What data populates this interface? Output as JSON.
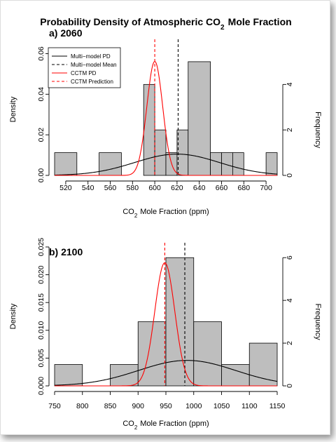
{
  "figure": {
    "title": "Probability Density of Atmospheric CO2 Mole Fraction",
    "colors": {
      "multi_model": "#000000",
      "cctm": "#ff0000",
      "bar_fill": "#bebebe"
    }
  },
  "chart_data": [
    {
      "type": "bar",
      "panel_label": "a) 2060",
      "title": "a) 2060",
      "xlabel": "CO2 Mole Fraction (ppm)",
      "ylabel": "Density",
      "y2label": "Frequency",
      "xlim": [
        510,
        710
      ],
      "ylim": [
        0,
        0.065
      ],
      "y2lim": [
        0,
        5.8
      ],
      "xticks": [
        520,
        540,
        560,
        580,
        600,
        620,
        640,
        660,
        680,
        700
      ],
      "yticks": [
        0.0,
        0.02,
        0.04,
        0.06
      ],
      "ytick_labels": [
        "0.00",
        "0.02",
        "0.04",
        "0.06"
      ],
      "y2ticks": [
        0,
        2,
        4
      ],
      "histogram": {
        "bins": [
          [
            510,
            530
          ],
          [
            530,
            550
          ],
          [
            550,
            570
          ],
          [
            570,
            590
          ],
          [
            590,
            600
          ],
          [
            600,
            610
          ],
          [
            610,
            620
          ],
          [
            620,
            630
          ],
          [
            630,
            650
          ],
          [
            650,
            660
          ],
          [
            660,
            670
          ],
          [
            670,
            680
          ],
          [
            680,
            690
          ],
          [
            690,
            700
          ],
          [
            700,
            710
          ]
        ],
        "frequencies": [
          1,
          0,
          1,
          0,
          4,
          2,
          1,
          2,
          5,
          1,
          1,
          1,
          0,
          0,
          1
        ]
      },
      "series": [
        {
          "name": "Multi-model PD",
          "kind": "normal",
          "mean": 620,
          "sd": 38,
          "linestyle": "solid",
          "color": "#000000"
        },
        {
          "name": "Multi-model Mean",
          "kind": "vline",
          "x": 621,
          "linestyle": "dashed",
          "color": "#000000"
        },
        {
          "name": "CCTM PD",
          "kind": "normal",
          "mean": 600,
          "sd": 7.1,
          "linestyle": "solid",
          "color": "#ff0000"
        },
        {
          "name": "CCTM Prediction",
          "kind": "vline",
          "x": 600,
          "linestyle": "dashed",
          "color": "#ff0000"
        }
      ],
      "legend": {
        "placement": "top-left",
        "entries": [
          "Multi−model PD",
          "Multi−model Mean",
          "CCTM PD",
          "CCTM Prediction"
        ]
      }
    },
    {
      "type": "bar",
      "panel_label": "b) 2100",
      "title": "b) 2100",
      "xlabel": "CO2 Mole Fraction (ppm)",
      "ylabel": "Density",
      "y2label": "Frequency",
      "xlim": [
        750,
        1150
      ],
      "ylim": [
        0,
        0.025
      ],
      "y2lim": [
        0,
        6.5
      ],
      "xticks": [
        750,
        800,
        850,
        900,
        950,
        1000,
        1050,
        1100,
        1150
      ],
      "yticks": [
        0.0,
        0.005,
        0.01,
        0.015,
        0.02,
        0.025
      ],
      "ytick_labels": [
        "0.000",
        "0.005",
        "0.010",
        "0.015",
        "0.020",
        "0.025"
      ],
      "y2ticks": [
        0,
        2,
        4,
        6
      ],
      "histogram": {
        "bins": [
          [
            750,
            800
          ],
          [
            800,
            850
          ],
          [
            850,
            900
          ],
          [
            900,
            950
          ],
          [
            950,
            1000
          ],
          [
            1000,
            1050
          ],
          [
            1050,
            1100
          ],
          [
            1100,
            1150
          ]
        ],
        "frequencies": [
          1,
          0,
          1,
          3,
          6,
          3,
          1,
          2
        ]
      },
      "series": [
        {
          "name": "Multi-model PD",
          "kind": "normal",
          "mean": 988,
          "sd": 87,
          "linestyle": "solid",
          "color": "#000000"
        },
        {
          "name": "Multi-model Mean",
          "kind": "vline",
          "x": 984,
          "linestyle": "dashed",
          "color": "#000000"
        },
        {
          "name": "CCTM PD",
          "kind": "normal",
          "mean": 948,
          "sd": 18,
          "linestyle": "solid",
          "color": "#ff0000"
        },
        {
          "name": "CCTM Prediction",
          "kind": "vline",
          "x": 948,
          "linestyle": "dashed",
          "color": "#ff0000"
        }
      ]
    }
  ]
}
